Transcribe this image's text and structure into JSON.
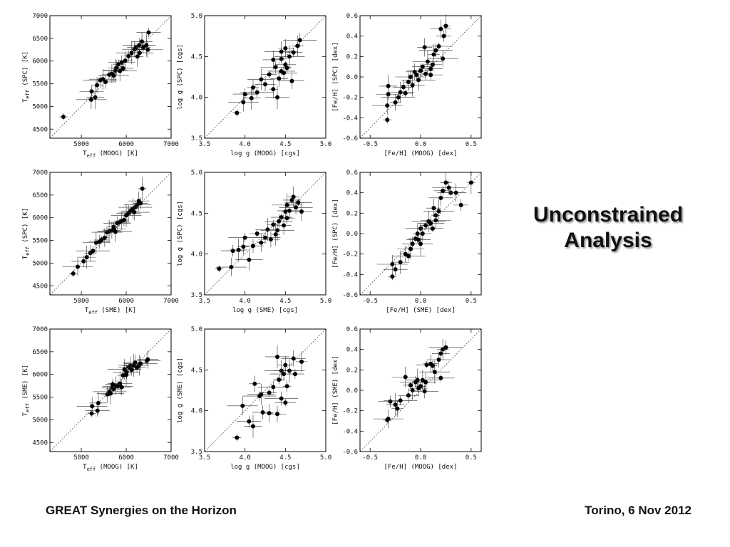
{
  "slide": {
    "title_line1": "Unconstrained",
    "title_line2": "Analysis",
    "footer_left": "GREAT Synergies on the Horizon",
    "footer_right": "Torino, 6 Nov 2012"
  },
  "style": {
    "marker_color": "#000000",
    "diagonal_color": "#555555",
    "axis_color": "#000000"
  },
  "chart_data": [
    {
      "type": "scatter",
      "grid": false,
      "one_to_one_line": true,
      "xlabel": "T_eff (MOOG) [K]",
      "ylabel": "T_eff (SPC) [K]",
      "xlim": [
        4300,
        7000
      ],
      "ylim": [
        4300,
        7000
      ],
      "xticks": [
        "5000",
        "6000",
        "7000"
      ],
      "yticks": [
        "4500",
        "5000",
        "5500",
        "6000",
        "6500",
        "7000"
      ],
      "points": [
        [
          4600,
          4770
        ],
        [
          5220,
          5150
        ],
        [
          5230,
          5330
        ],
        [
          5310,
          5200
        ],
        [
          5350,
          5470
        ],
        [
          5420,
          5580
        ],
        [
          5480,
          5600
        ],
        [
          5540,
          5540
        ],
        [
          5620,
          5700
        ],
        [
          5680,
          5720
        ],
        [
          5720,
          5680
        ],
        [
          5760,
          5790
        ],
        [
          5780,
          5850
        ],
        [
          5830,
          5930
        ],
        [
          5860,
          5780
        ],
        [
          5900,
          5970
        ],
        [
          5930,
          5840
        ],
        [
          5980,
          6010
        ],
        [
          6050,
          6110
        ],
        [
          6120,
          6180
        ],
        [
          6180,
          6260
        ],
        [
          6220,
          6300
        ],
        [
          6250,
          6100
        ],
        [
          6290,
          6350
        ],
        [
          6300,
          6180
        ],
        [
          6350,
          6430
        ],
        [
          6380,
          6300
        ],
        [
          6450,
          6350
        ],
        [
          6480,
          6250
        ],
        [
          6500,
          6630
        ]
      ]
    },
    {
      "type": "scatter",
      "grid": false,
      "one_to_one_line": true,
      "xlabel": "log g (MOOG) [cgs]",
      "ylabel": "log g (SPC) [cgs]",
      "xlim": [
        3.5,
        5.0
      ],
      "ylim": [
        3.5,
        5.0
      ],
      "xticks": [
        "3.5",
        "4.0",
        "4.5",
        "5.0"
      ],
      "yticks": [
        "3.5",
        "4.0",
        "4.5",
        "5.0"
      ],
      "points": [
        [
          3.9,
          3.81
        ],
        [
          3.98,
          3.94
        ],
        [
          4.0,
          4.04
        ],
        [
          4.08,
          3.99
        ],
        [
          4.1,
          4.12
        ],
        [
          4.15,
          4.06
        ],
        [
          4.2,
          4.22
        ],
        [
          4.25,
          4.16
        ],
        [
          4.3,
          4.28
        ],
        [
          4.35,
          4.1
        ],
        [
          4.38,
          4.37
        ],
        [
          4.4,
          4.0
        ],
        [
          4.42,
          4.23
        ],
        [
          4.45,
          4.47
        ],
        [
          4.45,
          4.56
        ],
        [
          4.48,
          4.3
        ],
        [
          4.5,
          4.4
        ],
        [
          4.5,
          4.6
        ],
        [
          4.52,
          4.36
        ],
        [
          4.55,
          4.5
        ],
        [
          4.58,
          4.2
        ],
        [
          4.6,
          4.55
        ],
        [
          4.65,
          4.63
        ],
        [
          4.68,
          4.7
        ],
        [
          4.45,
          4.32
        ],
        [
          4.35,
          4.46
        ]
      ]
    },
    {
      "type": "scatter",
      "grid": false,
      "one_to_one_line": true,
      "xlabel": "[Fe/H] (MOOG) [dex]",
      "ylabel": "[Fe/H] (SPC) [dex]",
      "xlim": [
        -0.6,
        0.6
      ],
      "ylim": [
        -0.6,
        0.6
      ],
      "xticks": [
        "-0.5",
        "0.0",
        "0.5"
      ],
      "yticks": [
        "-0.6",
        "-0.4",
        "-0.2",
        "0.0",
        "0.2",
        "0.4",
        "0.6"
      ],
      "points": [
        [
          -0.33,
          -0.42
        ],
        [
          -0.33,
          -0.28
        ],
        [
          -0.32,
          -0.17
        ],
        [
          -0.32,
          -0.09
        ],
        [
          -0.25,
          -0.25
        ],
        [
          -0.22,
          -0.2
        ],
        [
          -0.2,
          -0.15
        ],
        [
          -0.17,
          -0.1
        ],
        [
          -0.15,
          -0.16
        ],
        [
          -0.12,
          -0.05
        ],
        [
          -0.1,
          0.0
        ],
        [
          -0.08,
          -0.08
        ],
        [
          -0.06,
          0.05
        ],
        [
          -0.04,
          0.02
        ],
        [
          -0.02,
          -0.03
        ],
        [
          0.0,
          0.06
        ],
        [
          0.02,
          0.1
        ],
        [
          0.04,
          0.29
        ],
        [
          0.05,
          0.03
        ],
        [
          0.07,
          0.15
        ],
        [
          0.1,
          0.08
        ],
        [
          0.12,
          0.12
        ],
        [
          0.13,
          0.22
        ],
        [
          0.15,
          0.26
        ],
        [
          0.18,
          0.3
        ],
        [
          0.2,
          0.47
        ],
        [
          0.23,
          0.4
        ],
        [
          0.25,
          0.5
        ],
        [
          0.22,
          0.18
        ],
        [
          0.1,
          0.02
        ]
      ]
    },
    {
      "type": "scatter",
      "grid": false,
      "one_to_one_line": true,
      "xlabel": "T_eff (SME) [K]",
      "ylabel": "T_eff (SPC) [K]",
      "xlim": [
        4300,
        7000
      ],
      "ylim": [
        4300,
        7000
      ],
      "xticks": [
        "5000",
        "6000",
        "7000"
      ],
      "yticks": [
        "4500",
        "5000",
        "5500",
        "6000",
        "6500",
        "7000"
      ],
      "points": [
        [
          4820,
          4770
        ],
        [
          4920,
          4920
        ],
        [
          5050,
          5040
        ],
        [
          5120,
          5130
        ],
        [
          5200,
          5220
        ],
        [
          5260,
          5270
        ],
        [
          5330,
          5450
        ],
        [
          5400,
          5470
        ],
        [
          5450,
          5510
        ],
        [
          5520,
          5560
        ],
        [
          5570,
          5680
        ],
        [
          5620,
          5700
        ],
        [
          5680,
          5720
        ],
        [
          5720,
          5800
        ],
        [
          5760,
          5690
        ],
        [
          5800,
          5880
        ],
        [
          5850,
          5900
        ],
        [
          5900,
          5930
        ],
        [
          5950,
          5950
        ],
        [
          6000,
          6050
        ],
        [
          6050,
          6100
        ],
        [
          6100,
          6150
        ],
        [
          6150,
          6200
        ],
        [
          6200,
          6230
        ],
        [
          6250,
          6290
        ],
        [
          6280,
          6370
        ],
        [
          6320,
          6320
        ],
        [
          6360,
          6640
        ],
        [
          6180,
          6120
        ],
        [
          5730,
          5750
        ]
      ]
    },
    {
      "type": "scatter",
      "grid": false,
      "one_to_one_line": true,
      "xlabel": "log g (SME) [cgs]",
      "ylabel": "log g (SPC) [cgs]",
      "xlim": [
        3.5,
        5.0
      ],
      "ylim": [
        3.5,
        5.0
      ],
      "xticks": [
        "3.5",
        "4.0",
        "4.5",
        "5.0"
      ],
      "yticks": [
        "3.5",
        "4.0",
        "4.5",
        "5.0"
      ],
      "points": [
        [
          3.68,
          3.82
        ],
        [
          3.83,
          3.84
        ],
        [
          3.85,
          4.04
        ],
        [
          3.92,
          4.05
        ],
        [
          3.98,
          4.09
        ],
        [
          4.0,
          4.2
        ],
        [
          4.05,
          3.93
        ],
        [
          4.1,
          4.1
        ],
        [
          4.15,
          4.25
        ],
        [
          4.2,
          4.14
        ],
        [
          4.25,
          4.2
        ],
        [
          4.28,
          4.3
        ],
        [
          4.32,
          4.18
        ],
        [
          4.35,
          4.36
        ],
        [
          4.4,
          4.29
        ],
        [
          4.42,
          4.4
        ],
        [
          4.45,
          4.45
        ],
        [
          4.48,
          4.35
        ],
        [
          4.5,
          4.52
        ],
        [
          4.52,
          4.6
        ],
        [
          4.55,
          4.53
        ],
        [
          4.58,
          4.66
        ],
        [
          4.6,
          4.7
        ],
        [
          4.63,
          4.57
        ],
        [
          4.66,
          4.63
        ],
        [
          4.7,
          4.52
        ],
        [
          4.52,
          4.44
        ],
        [
          4.38,
          4.24
        ]
      ]
    },
    {
      "type": "scatter",
      "grid": false,
      "one_to_one_line": true,
      "xlabel": "[Fe/H] (SME) [dex]",
      "ylabel": "[Fe/H] (SPC) [dex]",
      "xlim": [
        -0.6,
        0.6
      ],
      "ylim": [
        -0.6,
        0.6
      ],
      "xticks": [
        "-0.5",
        "0.0",
        "0.5"
      ],
      "yticks": [
        "-0.6",
        "-0.4",
        "-0.2",
        "0.0",
        "0.2",
        "0.4",
        "0.6"
      ],
      "points": [
        [
          -0.28,
          -0.42
        ],
        [
          -0.28,
          -0.3
        ],
        [
          -0.25,
          -0.35
        ],
        [
          -0.2,
          -0.28
        ],
        [
          -0.15,
          -0.2
        ],
        [
          -0.12,
          -0.22
        ],
        [
          -0.1,
          -0.15
        ],
        [
          -0.08,
          -0.1
        ],
        [
          -0.05,
          -0.05
        ],
        [
          -0.03,
          0.0
        ],
        [
          0.0,
          0.05
        ],
        [
          0.0,
          -0.1
        ],
        [
          0.02,
          0.0
        ],
        [
          0.05,
          0.08
        ],
        [
          0.08,
          0.12
        ],
        [
          0.1,
          0.1
        ],
        [
          0.12,
          0.05
        ],
        [
          0.13,
          0.25
        ],
        [
          0.15,
          0.18
        ],
        [
          0.18,
          0.22
        ],
        [
          0.2,
          0.35
        ],
        [
          0.22,
          0.42
        ],
        [
          0.25,
          0.5
        ],
        [
          0.28,
          0.45
        ],
        [
          0.3,
          0.4
        ],
        [
          0.35,
          0.4
        ],
        [
          0.4,
          0.28
        ],
        [
          0.5,
          0.5
        ],
        [
          0.15,
          0.13
        ],
        [
          -0.02,
          -0.06
        ]
      ]
    },
    {
      "type": "scatter",
      "grid": false,
      "one_to_one_line": true,
      "xlabel": "T_eff (MOOG) [K]",
      "ylabel": "T_eff (SME) [K]",
      "xlim": [
        4300,
        7000
      ],
      "ylim": [
        4300,
        7000
      ],
      "xticks": [
        "5000",
        "6000",
        "7000"
      ],
      "yticks": [
        "4500",
        "5000",
        "5500",
        "6000",
        "6500",
        "7000"
      ],
      "points": [
        [
          5230,
          5140
        ],
        [
          5240,
          5300
        ],
        [
          5360,
          5200
        ],
        [
          5380,
          5370
        ],
        [
          5580,
          5560
        ],
        [
          5630,
          5620
        ],
        [
          5650,
          5580
        ],
        [
          5690,
          5700
        ],
        [
          5720,
          5680
        ],
        [
          5770,
          5750
        ],
        [
          5810,
          5740
        ],
        [
          5860,
          5800
        ],
        [
          5900,
          5720
        ],
        [
          5930,
          5980
        ],
        [
          5960,
          6110
        ],
        [
          6010,
          6050
        ],
        [
          6060,
          6160
        ],
        [
          6090,
          6190
        ],
        [
          6120,
          6100
        ],
        [
          6170,
          6200
        ],
        [
          6200,
          6260
        ],
        [
          6240,
          6150
        ],
        [
          6290,
          6200
        ],
        [
          6320,
          6240
        ],
        [
          6460,
          6300
        ],
        [
          6480,
          6330
        ],
        [
          5700,
          5780
        ],
        [
          6000,
          5990
        ]
      ]
    },
    {
      "type": "scatter",
      "grid": false,
      "one_to_one_line": true,
      "xlabel": "log g (MOOG) [cgs]",
      "ylabel": "log g (SME) [cgs]",
      "xlim": [
        3.5,
        5.0
      ],
      "ylim": [
        3.5,
        5.0
      ],
      "xticks": [
        "3.5",
        "4.0",
        "4.5",
        "5.0"
      ],
      "yticks": [
        "3.5",
        "4.0",
        "4.5",
        "5.0"
      ],
      "points": [
        [
          3.9,
          3.67
        ],
        [
          3.97,
          4.06
        ],
        [
          4.05,
          3.87
        ],
        [
          4.1,
          3.81
        ],
        [
          4.12,
          4.33
        ],
        [
          4.18,
          4.18
        ],
        [
          4.2,
          4.2
        ],
        [
          4.22,
          3.98
        ],
        [
          4.3,
          4.22
        ],
        [
          4.3,
          3.97
        ],
        [
          4.35,
          4.29
        ],
        [
          4.4,
          4.66
        ],
        [
          4.4,
          3.96
        ],
        [
          4.42,
          4.38
        ],
        [
          4.45,
          4.49
        ],
        [
          4.48,
          4.45
        ],
        [
          4.5,
          4.1
        ],
        [
          4.5,
          4.56
        ],
        [
          4.52,
          4.3
        ],
        [
          4.55,
          4.49
        ],
        [
          4.6,
          4.64
        ],
        [
          4.62,
          4.45
        ],
        [
          4.7,
          4.6
        ],
        [
          4.45,
          4.15
        ]
      ]
    },
    {
      "type": "scatter",
      "grid": false,
      "one_to_one_line": true,
      "xlabel": "[Fe/H] (MOOG) [dex]",
      "ylabel": "[Fe/H] (SME) [dex]",
      "xlim": [
        -0.6,
        0.6
      ],
      "ylim": [
        -0.6,
        0.6
      ],
      "xticks": [
        "-0.5",
        "0.0",
        "0.5"
      ],
      "yticks": [
        "-0.6",
        "-0.4",
        "-0.2",
        "0.0",
        "0.2",
        "0.4",
        "0.6"
      ],
      "points": [
        [
          -0.33,
          -0.29
        ],
        [
          -0.32,
          -0.28
        ],
        [
          -0.3,
          -0.11
        ],
        [
          -0.25,
          -0.14
        ],
        [
          -0.23,
          -0.18
        ],
        [
          -0.2,
          -0.1
        ],
        [
          -0.15,
          0.13
        ],
        [
          -0.12,
          -0.05
        ],
        [
          -0.1,
          0.05
        ],
        [
          -0.08,
          0.0
        ],
        [
          -0.05,
          0.08
        ],
        [
          -0.03,
          0.1
        ],
        [
          -0.02,
          0.02
        ],
        [
          0.0,
          0.04
        ],
        [
          0.02,
          0.1
        ],
        [
          0.04,
          -0.01
        ],
        [
          0.06,
          0.25
        ],
        [
          0.1,
          0.26
        ],
        [
          0.12,
          0.24
        ],
        [
          0.14,
          0.18
        ],
        [
          0.18,
          0.3
        ],
        [
          0.2,
          0.36
        ],
        [
          0.22,
          0.4
        ],
        [
          0.25,
          0.42
        ],
        [
          0.2,
          0.12
        ],
        [
          0.05,
          0.08
        ]
      ]
    }
  ]
}
